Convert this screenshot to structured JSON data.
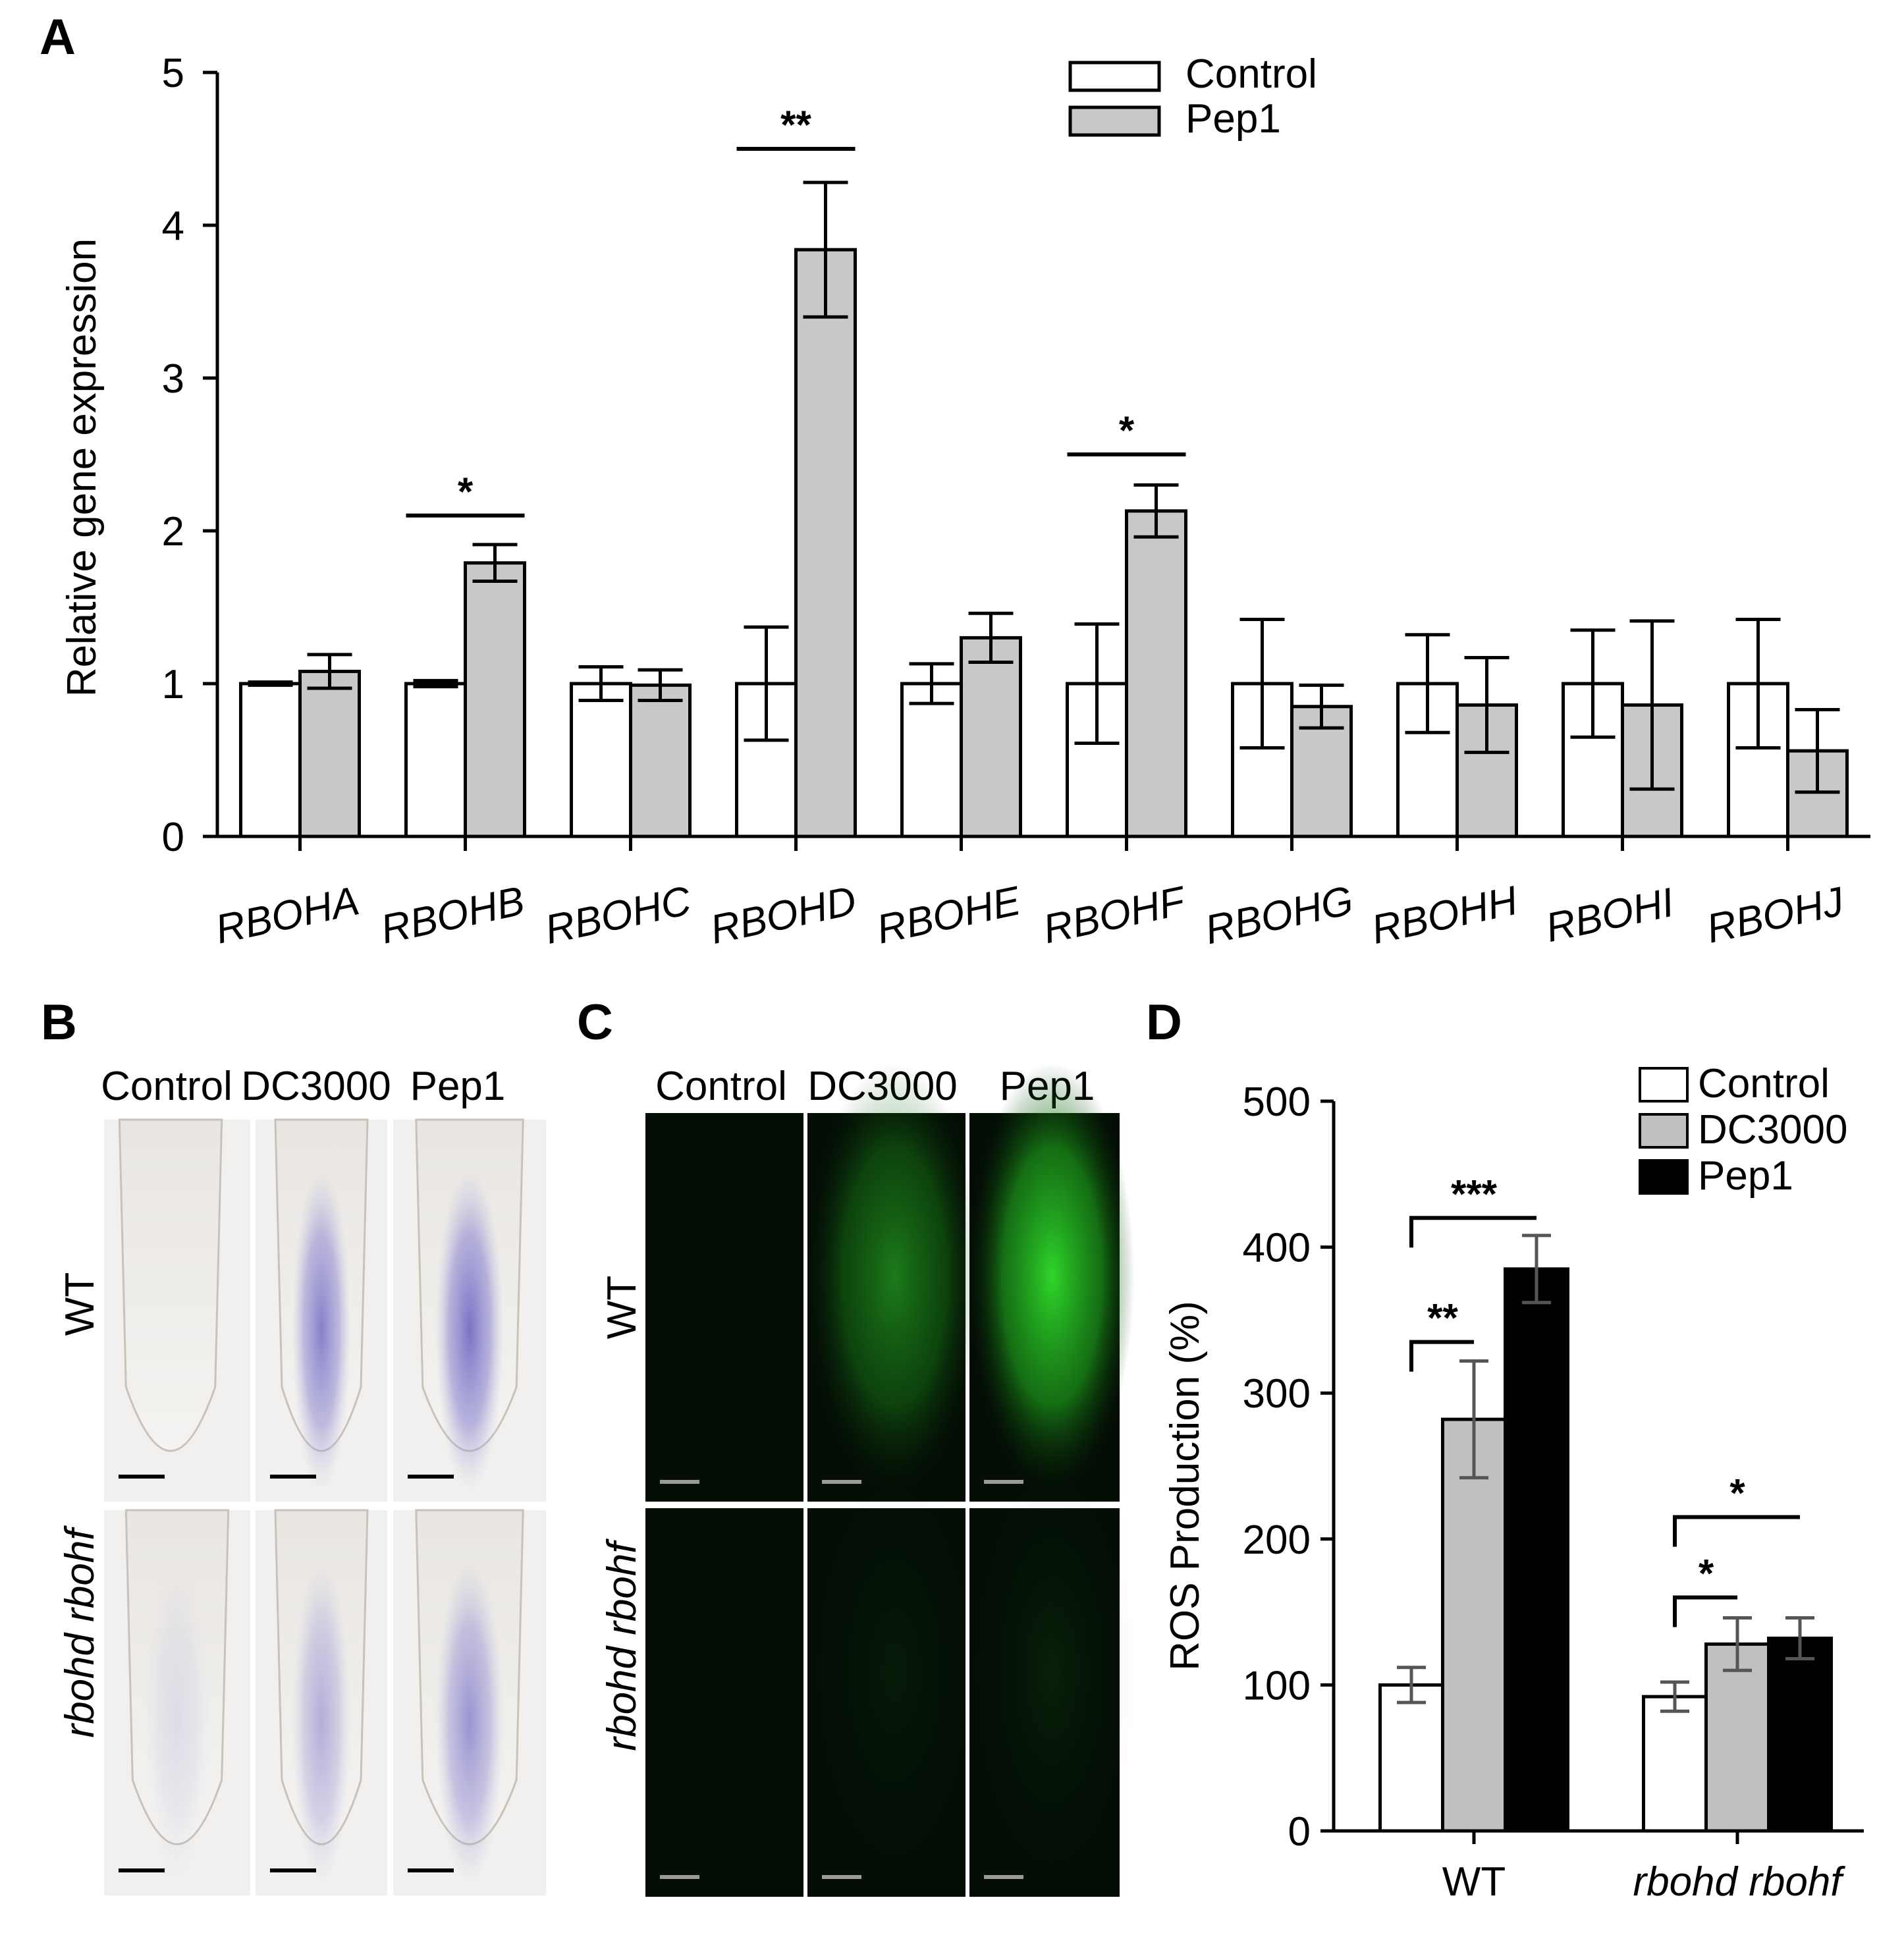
{
  "panels": {
    "A": {
      "letter": "A"
    },
    "B": {
      "letter": "B",
      "columns": [
        "Control",
        "DC3000",
        "Pep1"
      ],
      "rows": [
        "WT",
        "rbohd rbohf"
      ]
    },
    "C": {
      "letter": "C",
      "columns": [
        "Control",
        "DC3000",
        "Pep1"
      ],
      "rows": [
        "WT",
        "rbohd rbohf"
      ]
    },
    "D": {
      "letter": "D"
    }
  },
  "colors": {
    "control": "#ffffff",
    "pep1_A": "#c8c8c8",
    "dc3000_D": "#c0c0c0",
    "pep1_D": "#000000",
    "stain_purple": "#7a74c8",
    "fluor_green": "#28d22a"
  },
  "chart_data": [
    {
      "id": "A",
      "type": "bar",
      "title": "",
      "xlabel": "",
      "ylabel": "Relative gene expression",
      "ylim": [
        0,
        5
      ],
      "yticks": [
        0,
        1,
        2,
        3,
        4,
        5
      ],
      "categories": [
        "RBOHA",
        "RBOHB",
        "RBOHC",
        "RBOHD",
        "RBOHE",
        "RBOHF",
        "RBOHG",
        "RBOHH",
        "RBOHI",
        "RBOHJ"
      ],
      "series": [
        {
          "name": "Control",
          "values": [
            1.0,
            1.0,
            1.0,
            1.0,
            1.0,
            1.0,
            1.0,
            1.0,
            1.0,
            1.0
          ],
          "errors": [
            0.01,
            0.02,
            0.11,
            0.37,
            0.13,
            0.39,
            0.42,
            0.32,
            0.35,
            0.42
          ]
        },
        {
          "name": "Pep1",
          "values": [
            1.08,
            1.79,
            0.99,
            3.84,
            1.3,
            2.13,
            0.85,
            0.86,
            0.86,
            0.56
          ],
          "errors": [
            0.11,
            0.12,
            0.1,
            0.44,
            0.16,
            0.17,
            0.14,
            0.31,
            0.55,
            0.27
          ]
        }
      ],
      "significance": [
        {
          "category": "RBOHB",
          "label": "*",
          "y": 2.1
        },
        {
          "category": "RBOHD",
          "label": "**",
          "y": 4.5
        },
        {
          "category": "RBOHF",
          "label": "*",
          "y": 2.5
        }
      ],
      "legend": {
        "position": "top-right",
        "entries": [
          "Control",
          "Pep1"
        ]
      }
    },
    {
      "id": "D",
      "type": "bar",
      "title": "",
      "xlabel": "",
      "ylabel": "ROS Production (%)",
      "ylim": [
        0,
        500
      ],
      "yticks": [
        0,
        100,
        200,
        300,
        400,
        500
      ],
      "categories": [
        "WT",
        "rbohd rbohf"
      ],
      "series": [
        {
          "name": "Control",
          "values": [
            100,
            92
          ],
          "errors": [
            12,
            10
          ]
        },
        {
          "name": "DC3000",
          "values": [
            282,
            128
          ],
          "errors": [
            40,
            18
          ]
        },
        {
          "name": "Pep1",
          "values": [
            385,
            132
          ],
          "errors": [
            23,
            14
          ]
        }
      ],
      "significance": [
        {
          "group": "WT",
          "from": "Control",
          "to": "DC3000",
          "label": "**",
          "y": 335
        },
        {
          "group": "WT",
          "from": "Control",
          "to": "Pep1",
          "label": "***",
          "y": 420
        },
        {
          "group": "rbohd rbohf",
          "from": "Control",
          "to": "DC3000",
          "label": "*",
          "y": 160
        },
        {
          "group": "rbohd rbohf",
          "from": "Control",
          "to": "Pep1",
          "label": "*",
          "y": 215
        }
      ],
      "legend": {
        "position": "top-right",
        "entries": [
          "Control",
          "DC3000",
          "Pep1"
        ]
      }
    }
  ]
}
